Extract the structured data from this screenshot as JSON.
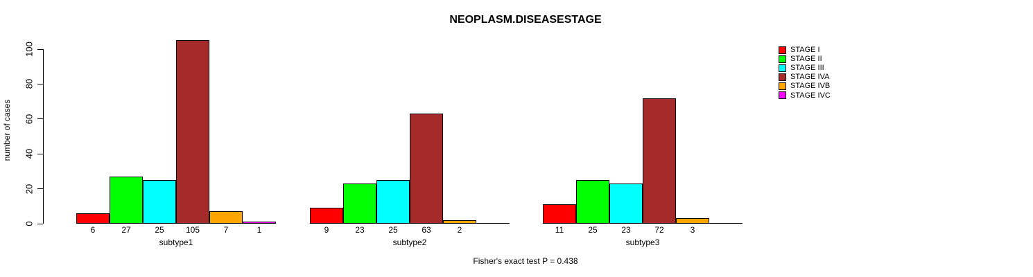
{
  "chart_data": {
    "type": "bar",
    "title": "NEOPLASM.DISEASESTAGE",
    "ylabel": "number of cases",
    "xlabel": "",
    "ylim": [
      0,
      110
    ],
    "y_ticks": [
      0,
      20,
      40,
      60,
      80,
      100
    ],
    "grid": false,
    "legend_position": "top-right",
    "bar_value_labels_shown": true,
    "categories": [
      "subtype1",
      "subtype2",
      "subtype3"
    ],
    "series": [
      {
        "name": "STAGE I",
        "color": "#ff0000",
        "values": [
          6,
          9,
          11
        ]
      },
      {
        "name": "STAGE II",
        "color": "#00ff00",
        "values": [
          27,
          23,
          25
        ]
      },
      {
        "name": "STAGE III",
        "color": "#00ffff",
        "values": [
          25,
          25,
          23
        ]
      },
      {
        "name": "STAGE IVA",
        "color": "#a52a2a",
        "values": [
          105,
          63,
          72
        ]
      },
      {
        "name": "STAGE IVB",
        "color": "#ffa500",
        "values": [
          7,
          2,
          3
        ]
      },
      {
        "name": "STAGE IVC",
        "color": "#ff00ff",
        "values": [
          1,
          0,
          0
        ]
      }
    ],
    "annotation": "Fisher's exact test P = 0.438"
  }
}
